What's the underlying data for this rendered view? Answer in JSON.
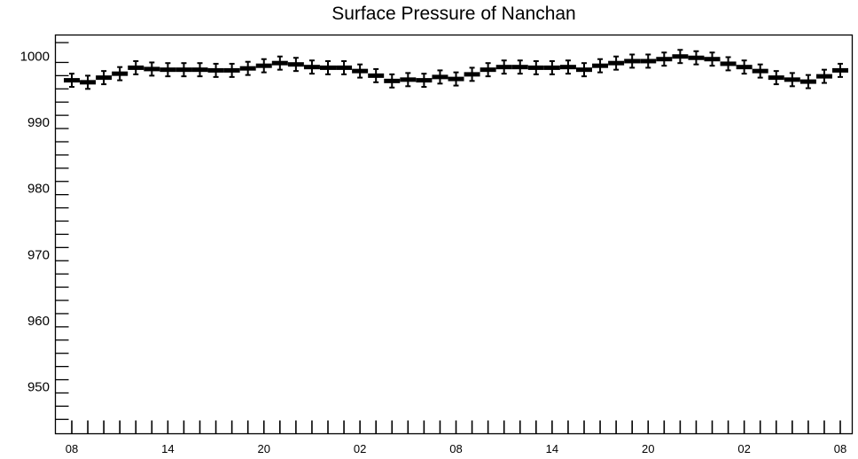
{
  "chart_data": {
    "type": "scatter",
    "title": "Surface Pressure of Nanchan",
    "xlabel": "",
    "ylabel": "",
    "x_tick_labels": [
      "08",
      "14",
      "20",
      "02",
      "08",
      "14",
      "20",
      "02",
      "08"
    ],
    "y_tick_labels": [
      "950",
      "960",
      "970",
      "980",
      "990",
      "1000"
    ],
    "ylim": [
      943,
      1003
    ],
    "grid": false,
    "legend": "none",
    "marker_color": "#000000",
    "error_bar_halfwidth_hpa": 1.0,
    "x_hours_since_start": [
      0,
      1,
      2,
      3,
      4,
      5,
      6,
      7,
      8,
      9,
      10,
      11,
      12,
      13,
      14,
      15,
      16,
      17,
      18,
      19,
      20,
      21,
      22,
      23,
      24,
      25,
      26,
      27,
      28,
      29,
      30,
      31,
      32,
      33,
      34,
      35,
      36,
      37,
      38,
      39,
      40,
      41,
      42,
      43,
      44,
      45,
      46,
      47,
      48
    ],
    "values": [
      996.3,
      996.0,
      996.7,
      997.3,
      998.2,
      998.0,
      997.9,
      997.9,
      997.9,
      997.8,
      997.8,
      998.1,
      998.5,
      998.9,
      998.7,
      998.3,
      998.2,
      998.2,
      997.7,
      997.0,
      996.2,
      996.4,
      996.3,
      996.8,
      996.5,
      997.2,
      997.9,
      998.3,
      998.3,
      998.2,
      998.2,
      998.3,
      997.9,
      998.5,
      998.9,
      999.2,
      999.2,
      999.5,
      999.9,
      999.7,
      999.5,
      998.8,
      998.3,
      997.7,
      996.7,
      996.4,
      996.1,
      996.9,
      997.8
    ]
  }
}
